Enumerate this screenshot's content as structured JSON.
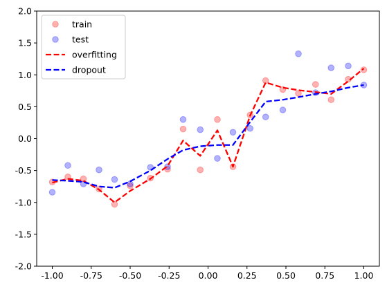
{
  "chart_data": {
    "type": "scatter",
    "title": "",
    "xlabel": "",
    "ylabel": "",
    "xlim": [
      -1.1,
      1.1
    ],
    "ylim": [
      -2.0,
      2.0
    ],
    "xticks": [
      "-1.00",
      "-0.75",
      "-0.50",
      "-0.25",
      "0.00",
      "0.25",
      "0.50",
      "0.75",
      "1.00"
    ],
    "yticks": [
      "-2.0",
      "-1.5",
      "-1.0",
      "-0.5",
      "0.0",
      "0.5",
      "1.0",
      "1.5",
      "2.0"
    ],
    "grid": false,
    "legend_position": "top-left",
    "series": [
      {
        "name": "train",
        "kind": "scatter",
        "color": "#ff0000",
        "x": [
          -1.0,
          -0.9,
          -0.8,
          -0.7,
          -0.6,
          -0.5,
          -0.37,
          -0.26,
          -0.16,
          -0.05,
          0.06,
          0.16,
          0.27,
          0.37,
          0.48,
          0.58,
          0.69,
          0.79,
          0.9,
          1.0
        ],
        "y": [
          -0.68,
          -0.6,
          -0.63,
          -0.79,
          -1.03,
          -0.74,
          -0.62,
          -0.48,
          0.15,
          -0.49,
          0.3,
          -0.44,
          0.37,
          0.91,
          0.77,
          0.71,
          0.85,
          0.61,
          0.93,
          1.08
        ]
      },
      {
        "name": "test",
        "kind": "scatter",
        "color": "#0000ff",
        "x": [
          -1.0,
          -0.9,
          -0.8,
          -0.7,
          -0.6,
          -0.5,
          -0.37,
          -0.26,
          -0.16,
          -0.05,
          0.06,
          0.16,
          0.27,
          0.37,
          0.48,
          0.58,
          0.69,
          0.79,
          0.9,
          1.0
        ],
        "y": [
          -0.84,
          -0.42,
          -0.71,
          -0.49,
          -0.64,
          -0.71,
          -0.45,
          -0.44,
          0.3,
          0.14,
          -0.31,
          0.1,
          0.16,
          0.34,
          0.45,
          1.33,
          0.72,
          1.11,
          1.14,
          0.84
        ]
      },
      {
        "name": "overfitting",
        "kind": "line",
        "color": "#ff0000",
        "x": [
          -1.0,
          -0.9,
          -0.8,
          -0.7,
          -0.6,
          -0.5,
          -0.37,
          -0.26,
          -0.16,
          -0.05,
          0.06,
          0.16,
          0.27,
          0.37,
          0.48,
          0.58,
          0.69,
          0.79,
          0.9,
          1.0
        ],
        "y": [
          -0.69,
          -0.63,
          -0.66,
          -0.8,
          -1.0,
          -0.82,
          -0.63,
          -0.43,
          -0.03,
          -0.27,
          0.13,
          -0.44,
          0.36,
          0.88,
          0.8,
          0.76,
          0.73,
          0.7,
          0.9,
          1.1
        ]
      },
      {
        "name": "dropout",
        "kind": "line",
        "color": "#0000ff",
        "x": [
          -1.0,
          -0.9,
          -0.8,
          -0.7,
          -0.6,
          -0.5,
          -0.37,
          -0.26,
          -0.16,
          -0.05,
          0.06,
          0.16,
          0.27,
          0.37,
          0.48,
          0.58,
          0.69,
          0.79,
          0.9,
          1.0
        ],
        "y": [
          -0.65,
          -0.66,
          -0.68,
          -0.75,
          -0.77,
          -0.67,
          -0.5,
          -0.32,
          -0.18,
          -0.12,
          -0.1,
          -0.1,
          0.26,
          0.58,
          0.61,
          0.65,
          0.7,
          0.74,
          0.8,
          0.84
        ]
      }
    ]
  }
}
